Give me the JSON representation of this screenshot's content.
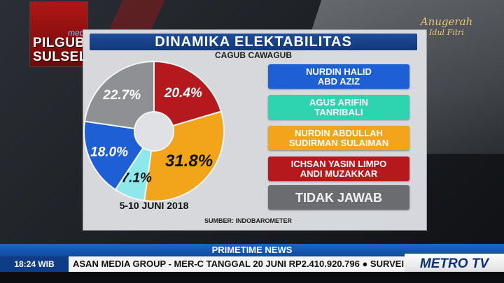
{
  "overlay": {
    "segment_label_line1": "PILGUB",
    "segment_label_line2": "SULSEL",
    "website": "medcom.id",
    "badge_line1": "Anugerah",
    "badge_line2": "Idul Fitri"
  },
  "infographic": {
    "title": "DINAMIKA ELEKTABILITAS",
    "subtitle": "CAGUB CAWAGUB",
    "date": "5-10 JUNI 2018",
    "source": "SUMBER: INDOBAROMETER"
  },
  "chart_data": {
    "type": "pie",
    "title": "DINAMIKA ELEKTABILITAS",
    "subtitle": "CAGUB CAWAGUB",
    "donut": true,
    "series": [
      {
        "name_lines": [
          "NURDIN HALID",
          "ABD AZIZ"
        ],
        "value": 18.0,
        "label": "18.0%",
        "color": "#1f5fd6"
      },
      {
        "name_lines": [
          "AGUS ARIFIN",
          "TANRIBALI"
        ],
        "value": 7.1,
        "label": "7.1%",
        "color": "#2ed3b0"
      },
      {
        "name_lines": [
          "NURDIN ABDULLAH",
          "SUDIRMAN SULAIMAN"
        ],
        "value": 31.8,
        "label": "31.8%",
        "color": "#f2a51a"
      },
      {
        "name_lines": [
          "ICHSAN YASIN LIMPO",
          "ANDI MUZAKKAR"
        ],
        "value": 20.4,
        "label": "20.4%",
        "color": "#b5181d"
      },
      {
        "name_lines": [
          "TIDAK JAWAB"
        ],
        "value": 22.7,
        "label": "22.7%",
        "color": "#6a6c70"
      }
    ],
    "slice_display": [
      {
        "label": "20.4%",
        "color": "#b5181d",
        "value": 20.4
      },
      {
        "label": "31.8%",
        "color": "#f2a51a",
        "value": 31.8
      },
      {
        "label": "7.1%",
        "color": "#8de8ec",
        "value": 7.1
      },
      {
        "label": "18.0%",
        "color": "#1f5fd6",
        "value": 18.0
      },
      {
        "label": "22.7%",
        "color": "#8e9094",
        "value": 22.7
      }
    ]
  },
  "ticker": {
    "program": "PRIMETIME NEWS",
    "clock": "18:24 WIB",
    "text": "ASAN MEDIA GROUP - MER-C TANGGAL 20 JUNI RP2.410.920.796 ● SURVEI",
    "channel": "METRO TV"
  }
}
